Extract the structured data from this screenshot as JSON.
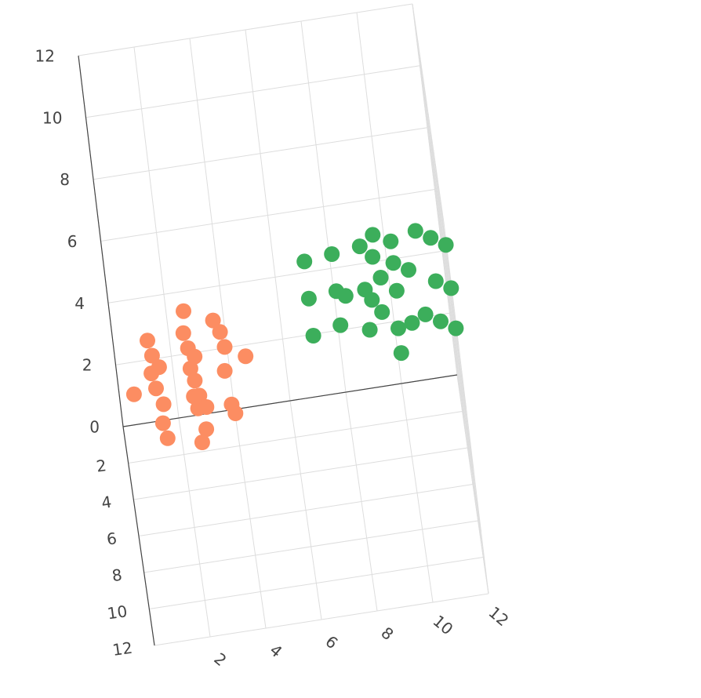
{
  "chart_data": {
    "type": "scatter",
    "title": "",
    "colors": {
      "series_1": "#fc8d62",
      "series_2": "#3cae5b",
      "grid": "#dddddd",
      "axis_text": "#444444"
    },
    "axes": {
      "x": {
        "range": [
          0,
          12
        ],
        "ticks": [
          2,
          4,
          6,
          8,
          10,
          12
        ],
        "tick_labels": [
          "2",
          "4",
          "6",
          "8",
          "10",
          "12"
        ]
      },
      "y": {
        "range": [
          0,
          12
        ],
        "ticks": [
          2,
          4,
          6,
          8,
          10,
          12
        ],
        "tick_labels": [
          "2",
          "4",
          "6",
          "8",
          "10",
          "12"
        ]
      },
      "z": {
        "range": [
          0,
          12
        ],
        "ticks": [
          0,
          2,
          4,
          6,
          8,
          10,
          12
        ],
        "tick_labels": [
          "0",
          "2",
          "4",
          "6",
          "8",
          "10",
          "12"
        ]
      }
    },
    "grid": true,
    "legend": false,
    "series": [
      {
        "color": "#fc8d62",
        "points": [
          {
            "x": 0.5,
            "y": 1.4,
            "z": 1.8
          },
          {
            "x": 1.2,
            "y": 1.5,
            "z": 3.5
          },
          {
            "x": 1.3,
            "y": 1.5,
            "z": 3.0
          },
          {
            "x": 1.2,
            "y": 1.6,
            "z": 2.5
          },
          {
            "x": 1.5,
            "y": 1.5,
            "z": 2.6
          },
          {
            "x": 1.3,
            "y": 1.6,
            "z": 2.0
          },
          {
            "x": 1.5,
            "y": 1.5,
            "z": 1.4
          },
          {
            "x": 1.4,
            "y": 1.5,
            "z": 0.8
          },
          {
            "x": 1.5,
            "y": 1.5,
            "z": 0.3
          },
          {
            "x": 2.6,
            "y": 1.4,
            "z": 4.2
          },
          {
            "x": 2.5,
            "y": 1.4,
            "z": 3.5
          },
          {
            "x": 2.6,
            "y": 1.4,
            "z": 3.0
          },
          {
            "x": 2.8,
            "y": 1.4,
            "z": 2.7
          },
          {
            "x": 2.6,
            "y": 1.5,
            "z": 2.4
          },
          {
            "x": 2.7,
            "y": 1.5,
            "z": 2.0
          },
          {
            "x": 2.6,
            "y": 1.5,
            "z": 1.5
          },
          {
            "x": 2.8,
            "y": 1.5,
            "z": 1.5
          },
          {
            "x": 2.7,
            "y": 1.5,
            "z": 1.1
          },
          {
            "x": 3.0,
            "y": 1.5,
            "z": 1.1
          },
          {
            "x": 2.9,
            "y": 1.5,
            "z": 0.4
          },
          {
            "x": 2.7,
            "y": 1.5,
            "z": 0.0
          },
          {
            "x": 3.6,
            "y": 1.3,
            "z": 3.7
          },
          {
            "x": 3.8,
            "y": 1.3,
            "z": 3.3
          },
          {
            "x": 3.9,
            "y": 1.3,
            "z": 2.8
          },
          {
            "x": 3.8,
            "y": 1.4,
            "z": 2.1
          },
          {
            "x": 4.6,
            "y": 1.3,
            "z": 2.4
          },
          {
            "x": 3.9,
            "y": 1.4,
            "z": 1.0
          },
          {
            "x": 4.0,
            "y": 1.4,
            "z": 0.7
          }
        ]
      },
      {
        "color": "#3cae5b",
        "points": [
          {
            "x": 7.0,
            "y": 6.5,
            "z": 8.2
          },
          {
            "x": 7.0,
            "y": 6.5,
            "z": 7.0
          },
          {
            "x": 7.0,
            "y": 6.5,
            "z": 5.8
          },
          {
            "x": 8.0,
            "y": 6.5,
            "z": 8.3
          },
          {
            "x": 8.0,
            "y": 6.5,
            "z": 7.1
          },
          {
            "x": 8.0,
            "y": 6.5,
            "z": 6.0
          },
          {
            "x": 8.3,
            "y": 7.0,
            "z": 7.2
          },
          {
            "x": 9.0,
            "y": 7.5,
            "z": 9.0
          },
          {
            "x": 9.0,
            "y": 7.5,
            "z": 7.6
          },
          {
            "x": 9.0,
            "y": 7.5,
            "z": 6.3
          },
          {
            "x": 9.5,
            "y": 8.0,
            "z": 9.6
          },
          {
            "x": 9.4,
            "y": 8.0,
            "z": 8.9
          },
          {
            "x": 9.2,
            "y": 7.6,
            "z": 7.3
          },
          {
            "x": 9.5,
            "y": 8.0,
            "z": 7.1
          },
          {
            "x": 9.6,
            "y": 8.0,
            "z": 8.2
          },
          {
            "x": 10.1,
            "y": 8.5,
            "z": 9.6
          },
          {
            "x": 10.1,
            "y": 8.5,
            "z": 8.9
          },
          {
            "x": 10.1,
            "y": 8.5,
            "z": 8.0
          },
          {
            "x": 10.0,
            "y": 8.5,
            "z": 6.8
          },
          {
            "x": 10.0,
            "y": 8.5,
            "z": 6.0
          },
          {
            "x": 10.6,
            "y": 9.0,
            "z": 8.9
          },
          {
            "x": 10.5,
            "y": 9.0,
            "z": 7.2
          },
          {
            "x": 11.0,
            "y": 9.5,
            "z": 10.4
          },
          {
            "x": 11.0,
            "y": 9.5,
            "z": 7.7
          },
          {
            "x": 11.5,
            "y": 10.0,
            "z": 10.4
          },
          {
            "x": 11.5,
            "y": 10.0,
            "z": 9.0
          },
          {
            "x": 11.5,
            "y": 10.0,
            "z": 7.7
          },
          {
            "x": 12.0,
            "y": 10.5,
            "z": 10.4
          },
          {
            "x": 12.0,
            "y": 10.5,
            "z": 9.0
          },
          {
            "x": 12.0,
            "y": 10.5,
            "z": 7.7
          }
        ]
      }
    ]
  }
}
